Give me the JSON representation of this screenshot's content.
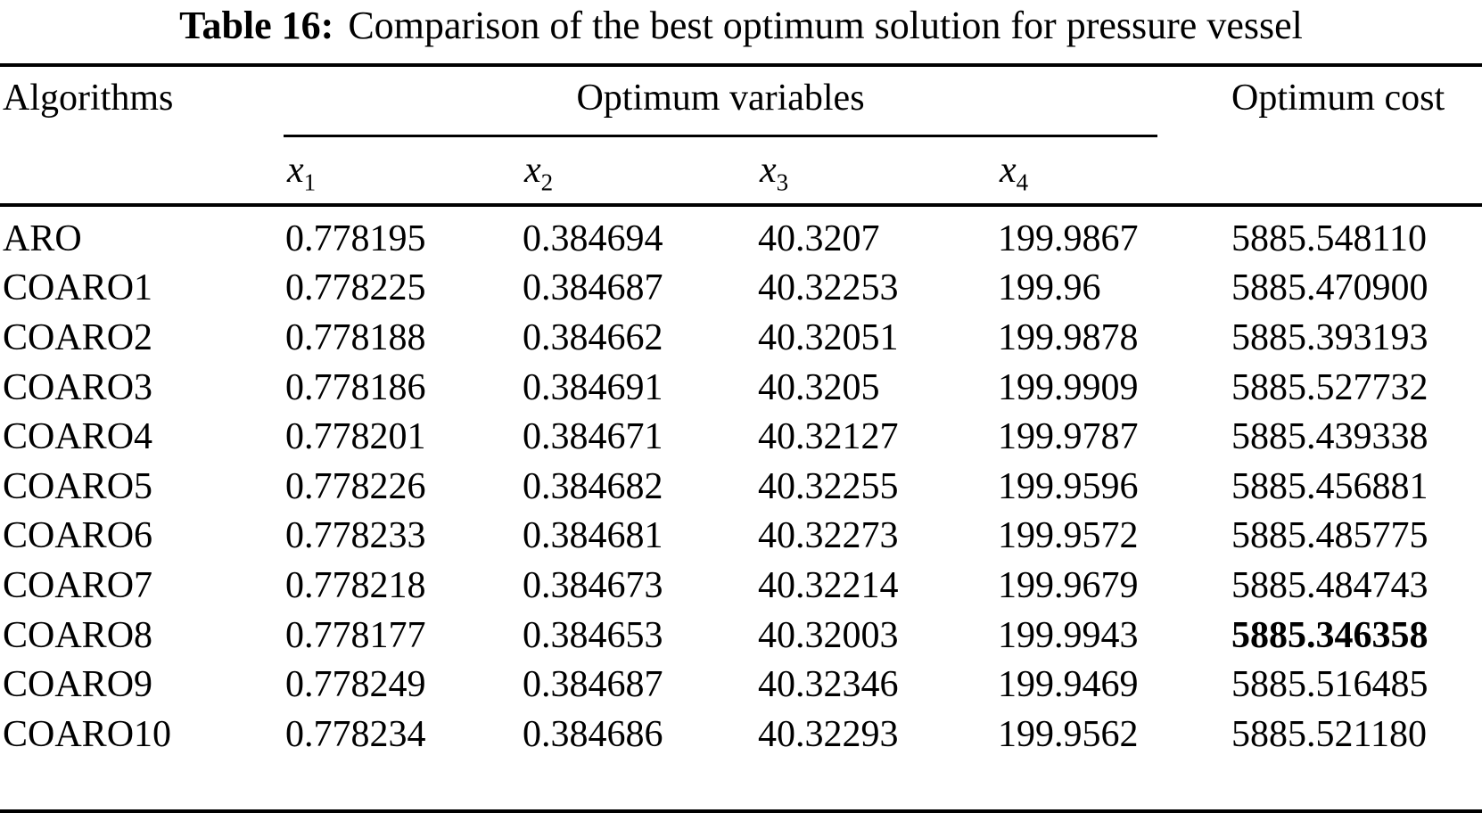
{
  "title": {
    "label": "Table 16:",
    "text": "Comparison of the best optimum solution for pressure vessel"
  },
  "table": {
    "col_algorithms": "Algorithms",
    "group_header": "Optimum variables",
    "col_cost": "Optimum cost",
    "var_headers": [
      {
        "base": "x",
        "sub": "1"
      },
      {
        "base": "x",
        "sub": "2"
      },
      {
        "base": "x",
        "sub": "3"
      },
      {
        "base": "x",
        "sub": "4"
      }
    ],
    "rows": [
      {
        "algorithm": "ARO",
        "x1": "0.778195",
        "x2": "0.384694",
        "x3": "40.3207",
        "x4": "199.9867",
        "cost": "5885.548110",
        "cost_bold": false
      },
      {
        "algorithm": "COARO1",
        "x1": "0.778225",
        "x2": "0.384687",
        "x3": "40.32253",
        "x4": "199.96",
        "cost": "5885.470900",
        "cost_bold": false
      },
      {
        "algorithm": "COARO2",
        "x1": "0.778188",
        "x2": "0.384662",
        "x3": "40.32051",
        "x4": "199.9878",
        "cost": "5885.393193",
        "cost_bold": false
      },
      {
        "algorithm": "COARO3",
        "x1": "0.778186",
        "x2": "0.384691",
        "x3": "40.3205",
        "x4": "199.9909",
        "cost": "5885.527732",
        "cost_bold": false
      },
      {
        "algorithm": "COARO4",
        "x1": "0.778201",
        "x2": "0.384671",
        "x3": "40.32127",
        "x4": "199.9787",
        "cost": "5885.439338",
        "cost_bold": false
      },
      {
        "algorithm": "COARO5",
        "x1": "0.778226",
        "x2": "0.384682",
        "x3": "40.32255",
        "x4": "199.9596",
        "cost": "5885.456881",
        "cost_bold": false
      },
      {
        "algorithm": "COARO6",
        "x1": "0.778233",
        "x2": "0.384681",
        "x3": "40.32273",
        "x4": "199.9572",
        "cost": "5885.485775",
        "cost_bold": false
      },
      {
        "algorithm": "COARO7",
        "x1": "0.778218",
        "x2": "0.384673",
        "x3": "40.32214",
        "x4": "199.9679",
        "cost": "5885.484743",
        "cost_bold": false
      },
      {
        "algorithm": "COARO8",
        "x1": "0.778177",
        "x2": "0.384653",
        "x3": "40.32003",
        "x4": "199.9943",
        "cost": "5885.346358",
        "cost_bold": true
      },
      {
        "algorithm": "COARO9",
        "x1": "0.778249",
        "x2": "0.384687",
        "x3": "40.32346",
        "x4": "199.9469",
        "cost": "5885.516485",
        "cost_bold": false
      },
      {
        "algorithm": "COARO10",
        "x1": "0.778234",
        "x2": "0.384686",
        "x3": "40.32293",
        "x4": "199.9562",
        "cost": "5885.521180",
        "cost_bold": false
      }
    ]
  }
}
